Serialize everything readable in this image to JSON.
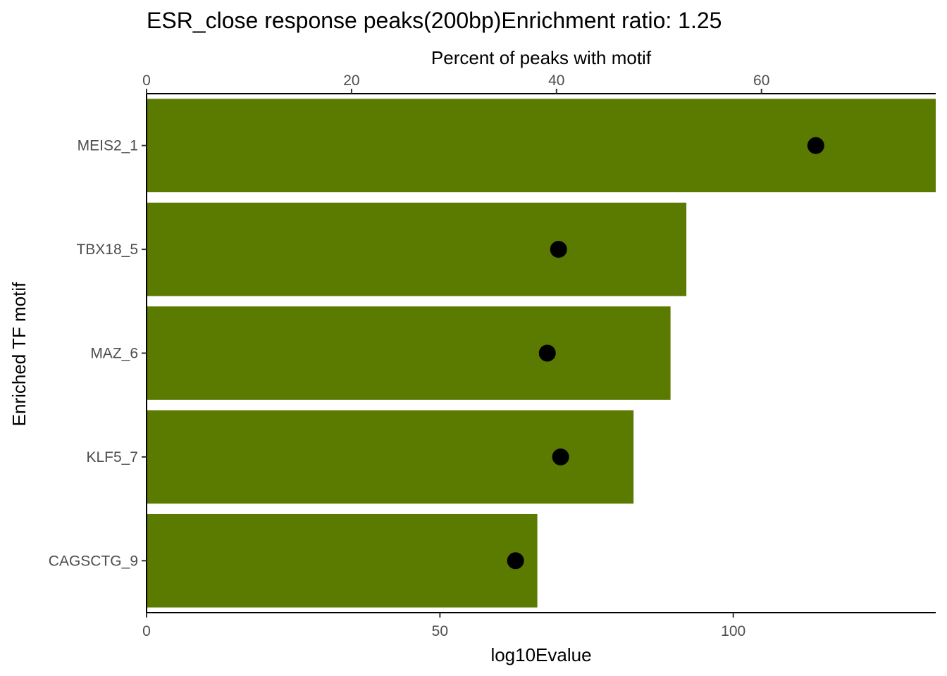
{
  "chart_data": {
    "type": "bar",
    "title": "ESR_close response peaks(200bp)Enrichment ratio: 1.25",
    "ylabel": "Enriched TF motif",
    "xlabel": "log10Evalue",
    "x2label": "Percent of peaks with motif",
    "categories": [
      "MEIS2_1",
      "TBX18_5",
      "MAZ_6",
      "KLF5_7",
      "CAGSCTG_9"
    ],
    "series": [
      {
        "kind": "bar",
        "axis": "bottom",
        "values": [
          135,
          92,
          89.3,
          83,
          66.6
        ],
        "color": "#5a7a00"
      },
      {
        "kind": "point",
        "axis": "top",
        "values": [
          65.3,
          40.2,
          39.1,
          40.4,
          36.0
        ],
        "color": "#000000"
      }
    ],
    "xlim": [
      0,
      134.5
    ],
    "x2lim": [
      0,
      77
    ],
    "xticks": [
      0,
      50,
      100
    ],
    "x2ticks": [
      0,
      20,
      40,
      60
    ],
    "grid": false
  }
}
